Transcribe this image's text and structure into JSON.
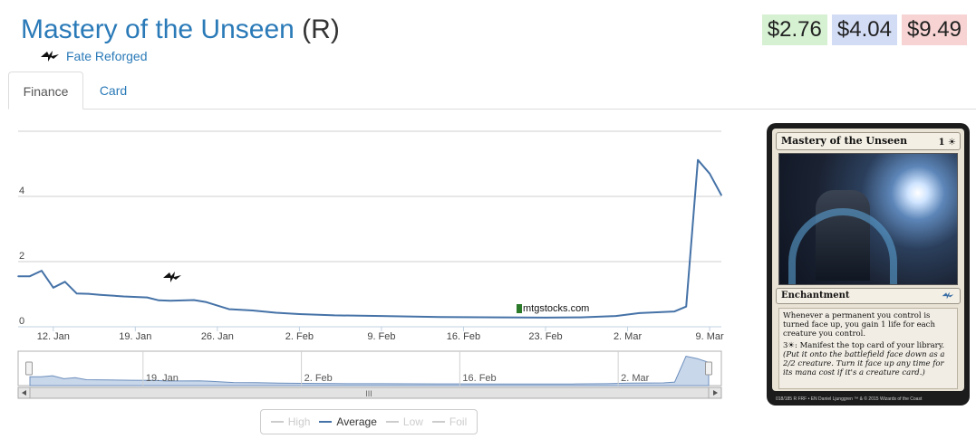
{
  "header": {
    "card_name": "Mastery of the Unseen",
    "rarity": "(R)",
    "set_name": "Fate Reforged",
    "set_icon": "fate-reforged-set-icon"
  },
  "prices": {
    "low": "$2.76",
    "average": "$4.04",
    "high": "$9.49",
    "colors": {
      "low": "#d6f0d2",
      "average": "#d3dcf5",
      "high": "#f7d3d3"
    }
  },
  "tabs": [
    {
      "label": "Finance",
      "active": true
    },
    {
      "label": "Card",
      "active": false
    }
  ],
  "chart_data": {
    "type": "line",
    "title": "",
    "xlabel": "",
    "ylabel": "",
    "ylim": [
      0,
      6
    ],
    "yticks": [
      "0",
      "2",
      "4"
    ],
    "xticks": [
      "12. Jan",
      "19. Jan",
      "26. Jan",
      "2. Feb",
      "9. Feb",
      "16. Feb",
      "23. Feb",
      "2. Mar",
      "9. Mar"
    ],
    "watermark": "mtgstocks.com",
    "legend": [
      "High",
      "Average",
      "Low",
      "Foil"
    ],
    "legend_active": "Average",
    "legend_placement": "bottom",
    "series_color": "#4572a7",
    "series": [
      {
        "name": "Average",
        "x": [
          "2015-01-09",
          "2015-01-10",
          "2015-01-11",
          "2015-01-12",
          "2015-01-13",
          "2015-01-14",
          "2015-01-15",
          "2015-01-16",
          "2015-01-18",
          "2015-01-20",
          "2015-01-21",
          "2015-01-22",
          "2015-01-24",
          "2015-01-25",
          "2015-01-27",
          "2015-01-29",
          "2015-01-31",
          "2015-02-02",
          "2015-02-05",
          "2015-02-09",
          "2015-02-14",
          "2015-02-19",
          "2015-02-23",
          "2015-02-26",
          "2015-03-01",
          "2015-03-03",
          "2015-03-06",
          "2015-03-07",
          "2015-03-08",
          "2015-03-09",
          "2015-03-10"
        ],
        "y": [
          1.55,
          1.55,
          1.72,
          1.2,
          1.38,
          1.02,
          1.01,
          0.98,
          0.93,
          0.9,
          0.81,
          0.8,
          0.82,
          0.76,
          0.54,
          0.5,
          0.43,
          0.39,
          0.35,
          0.33,
          0.3,
          0.29,
          0.28,
          0.29,
          0.33,
          0.42,
          0.47,
          0.62,
          5.12,
          4.7,
          4.04
        ]
      }
    ],
    "navigator": {
      "xticks": [
        "19. Jan",
        "2. Feb",
        "16. Feb",
        "2. Mar"
      ]
    }
  },
  "card_image": {
    "name": "Mastery of the Unseen",
    "mana_cost": "1 ☀",
    "type_line": "Enchantment",
    "rules_text_1": "Whenever a permanent you control is turned face up, you gain 1 life for each creature you control.",
    "rules_text_2": "3☀: Manifest the top card of your library.",
    "reminder_text": "(Put it onto the battlefield face down as a 2/2 creature. Turn it face up any time for its mana cost if it's a creature card.)",
    "footer": "018/185 R  FRF • EN  Daniel Ljunggren   ™ & © 2015 Wizards of the Coast"
  }
}
